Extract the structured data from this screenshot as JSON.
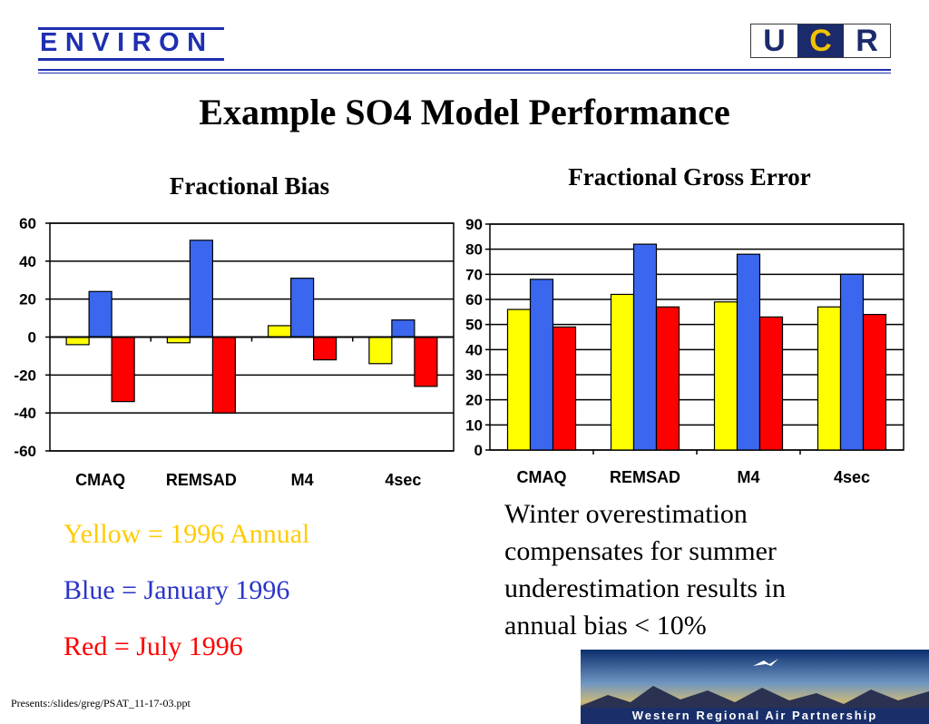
{
  "header": {
    "logo_left": "ENVIRON",
    "logo_right_letters": [
      "U",
      "C",
      "R"
    ]
  },
  "slide_title": "Example SO4 Model Performance",
  "chart_data": [
    {
      "type": "bar",
      "title": "Fractional Bias",
      "categories": [
        "CMAQ",
        "REMSAD",
        "M4",
        "4sec"
      ],
      "series": [
        {
          "values": [
            -4,
            -3,
            6,
            -14
          ],
          "color": "#ffff00"
        },
        {
          "values": [
            24,
            51,
            31,
            9
          ],
          "color": "#3a67ee"
        },
        {
          "values": [
            -34,
            -40,
            -12,
            -26
          ],
          "color": "#ff0000"
        }
      ],
      "ylim": [
        -60,
        60
      ],
      "yticks": [
        60,
        40,
        20,
        0,
        -20,
        -40,
        -60
      ],
      "grid": true,
      "xlabel": "",
      "ylabel": ""
    },
    {
      "type": "bar",
      "title": "Fractional Gross Error",
      "categories": [
        "CMAQ",
        "REMSAD",
        "M4",
        "4sec"
      ],
      "series": [
        {
          "values": [
            56,
            62,
            59,
            57
          ],
          "color": "#ffff00"
        },
        {
          "values": [
            68,
            82,
            78,
            70
          ],
          "color": "#3a67ee"
        },
        {
          "values": [
            49,
            57,
            53,
            54
          ],
          "color": "#ff0000"
        }
      ],
      "ylim": [
        0,
        90
      ],
      "yticks": [
        90,
        80,
        70,
        60,
        50,
        40,
        30,
        20,
        10,
        0
      ],
      "grid": true,
      "xlabel": "",
      "ylabel": ""
    }
  ],
  "legend": {
    "yellow": {
      "text": "Yellow = 1996 Annual",
      "color": "#ffcc00"
    },
    "blue": {
      "text": "Blue = January 1996",
      "color": "#2a35c8"
    },
    "red": {
      "text": "Red = July 1996",
      "color": "#ff0000"
    }
  },
  "note_lines": [
    "Winter overestimation",
    "compensates for summer",
    "underestimation results in",
    "annual bias < 10%"
  ],
  "footer": "Presents:/slides/greg/PSAT_11-17-03.ppt",
  "banner": "Western Regional Air Partnership"
}
